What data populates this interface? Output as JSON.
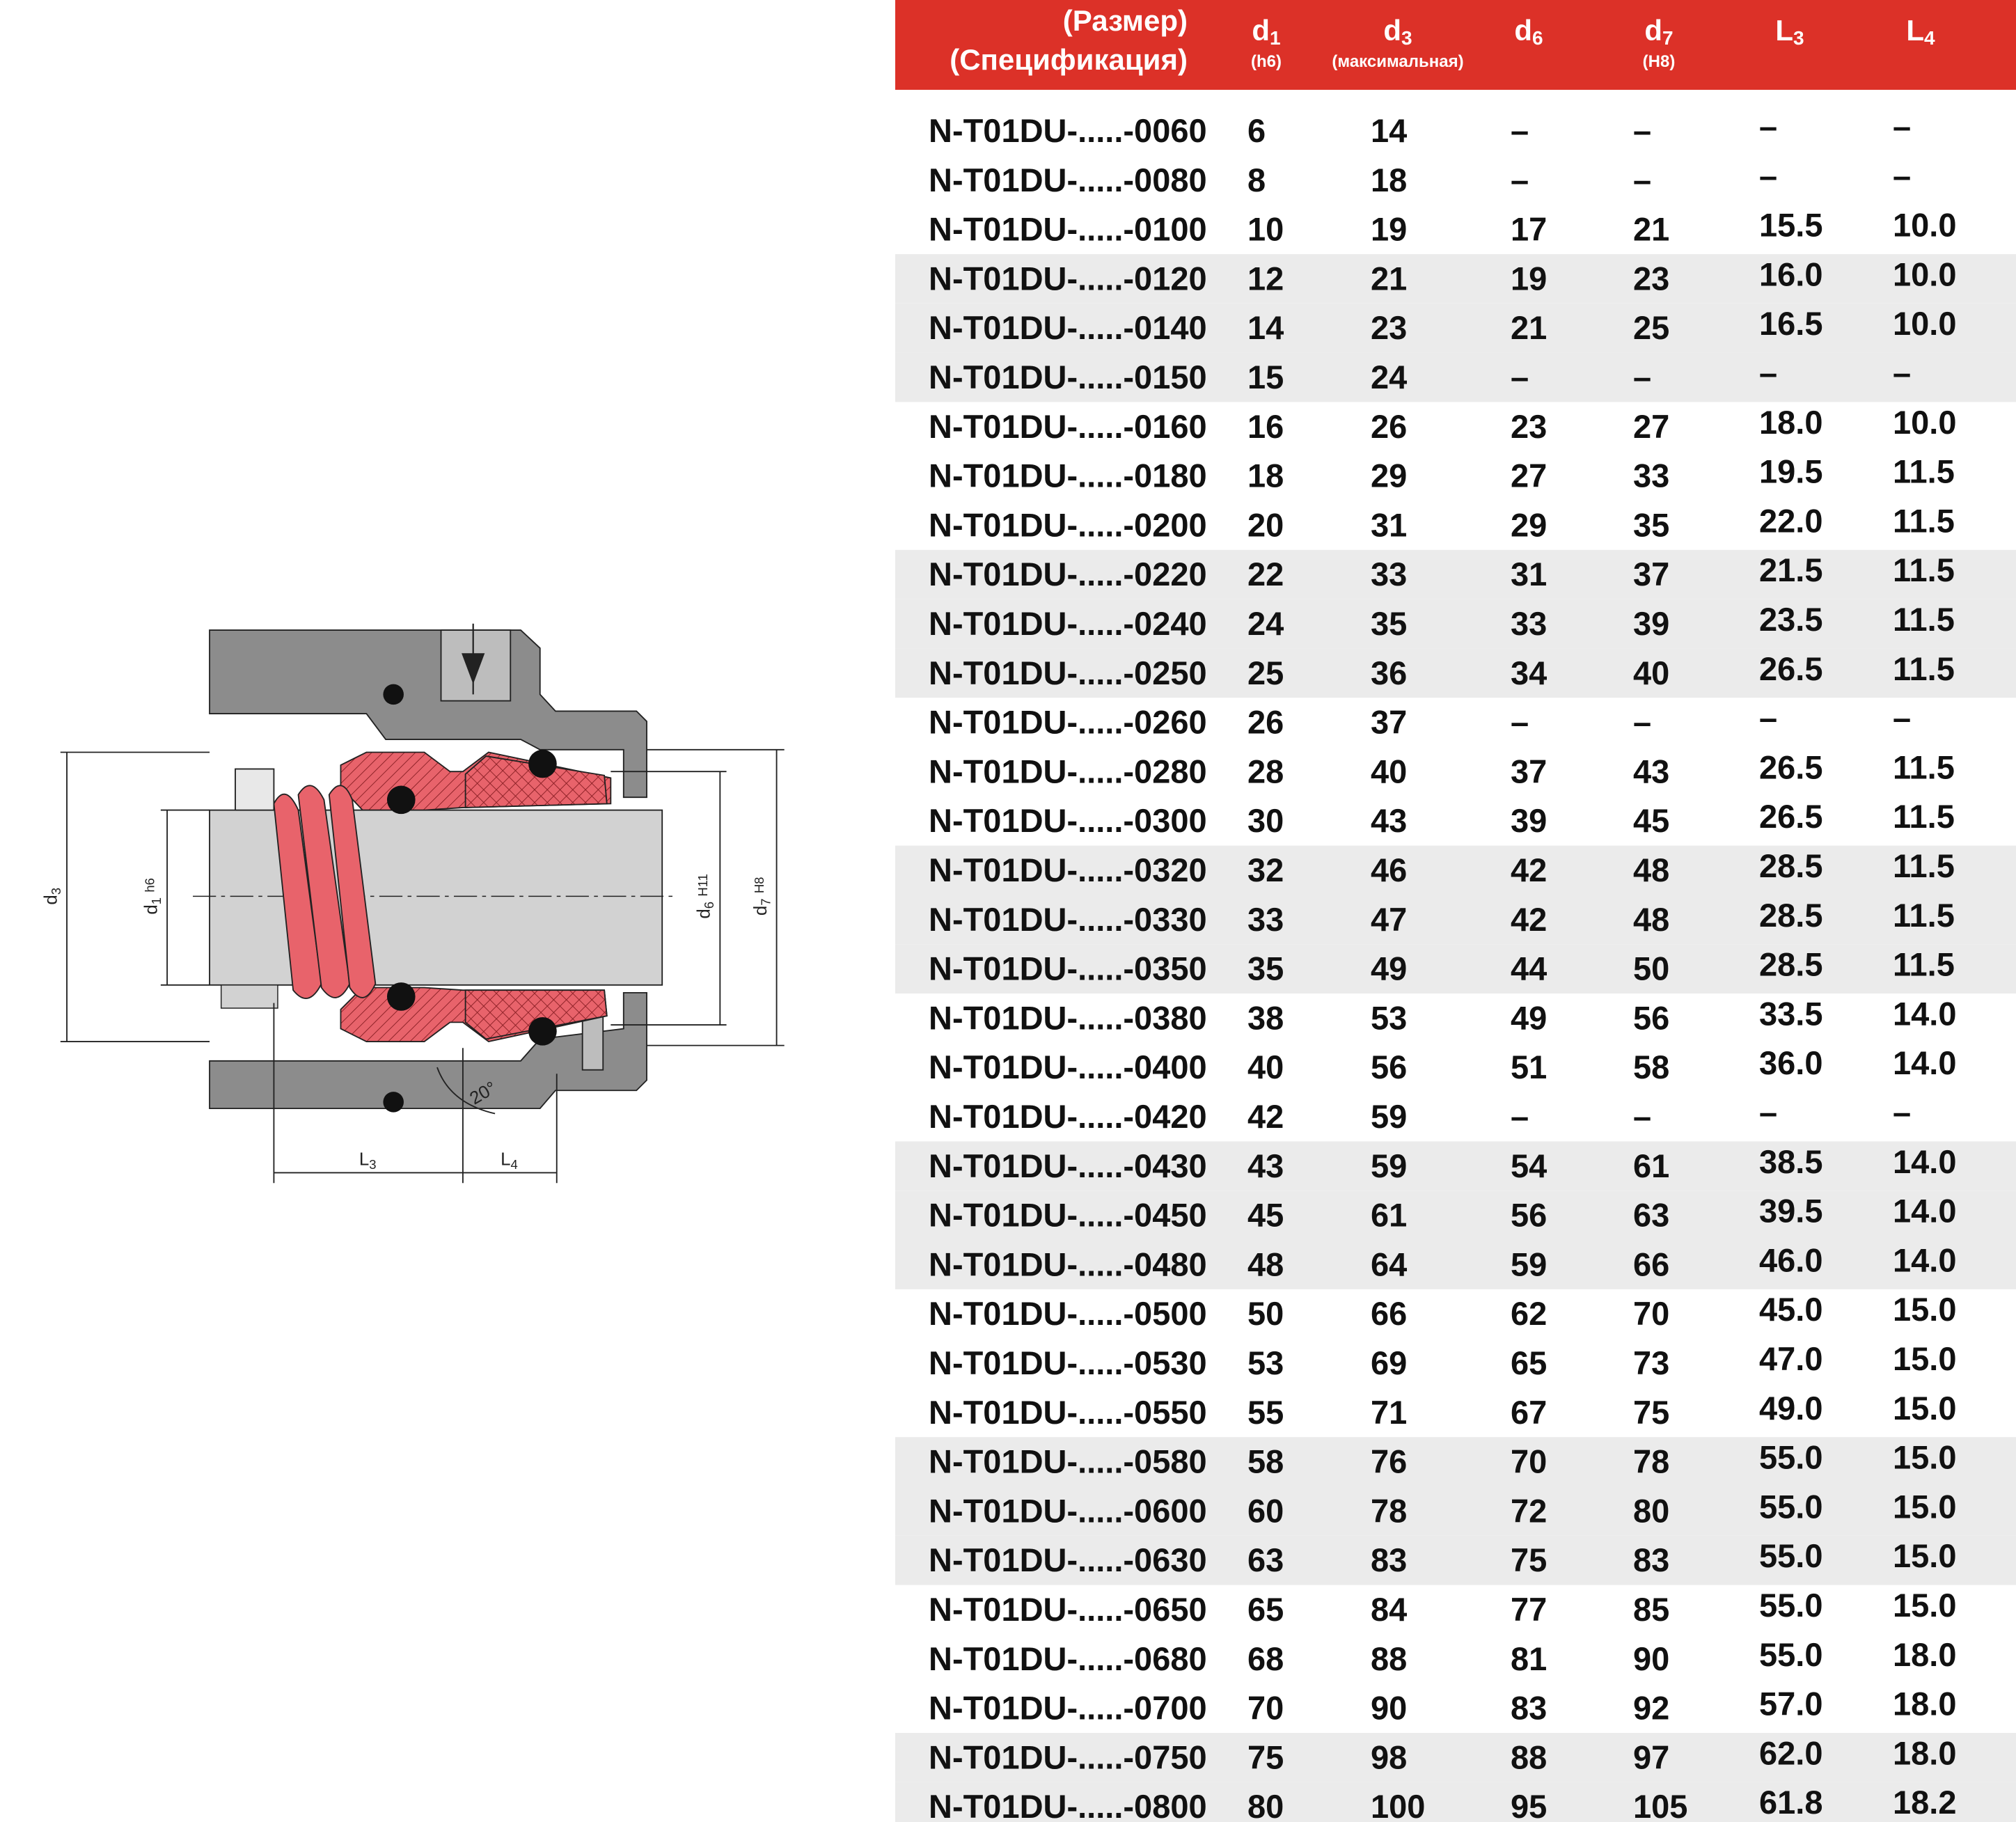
{
  "table": {
    "header": {
      "spec": [
        "(Размер)",
        "(Спецификация)"
      ],
      "columns": [
        {
          "symbol": "d",
          "sub": "1",
          "note": "(h6)"
        },
        {
          "symbol": "d",
          "sub": "3",
          "note": "(максимальная)"
        },
        {
          "symbol": "d",
          "sub": "6"
        },
        {
          "symbol": "d",
          "sub": "7",
          "note": "(H8)"
        },
        {
          "symbol": "L",
          "sub": "3"
        },
        {
          "symbol": "L",
          "sub": "4"
        }
      ]
    },
    "rows": [
      [
        "N-T01DU-.....-0060",
        "6",
        "14",
        "–",
        "–",
        "–",
        "–"
      ],
      [
        "N-T01DU-.....-0080",
        "8",
        "18",
        "–",
        "–",
        "–",
        "–"
      ],
      [
        "N-T01DU-.....-0100",
        "10",
        "19",
        "17",
        "21",
        "15.5",
        "10.0"
      ],
      [
        "N-T01DU-.....-0120",
        "12",
        "21",
        "19",
        "23",
        "16.0",
        "10.0"
      ],
      [
        "N-T01DU-.....-0140",
        "14",
        "23",
        "21",
        "25",
        "16.5",
        "10.0"
      ],
      [
        "N-T01DU-.....-0150",
        "15",
        "24",
        "–",
        "–",
        "–",
        "–"
      ],
      [
        "N-T01DU-.....-0160",
        "16",
        "26",
        "23",
        "27",
        "18.0",
        "10.0"
      ],
      [
        "N-T01DU-.....-0180",
        "18",
        "29",
        "27",
        "33",
        "19.5",
        "11.5"
      ],
      [
        "N-T01DU-.....-0200",
        "20",
        "31",
        "29",
        "35",
        "22.0",
        "11.5"
      ],
      [
        "N-T01DU-.....-0220",
        "22",
        "33",
        "31",
        "37",
        "21.5",
        "11.5"
      ],
      [
        "N-T01DU-.....-0240",
        "24",
        "35",
        "33",
        "39",
        "23.5",
        "11.5"
      ],
      [
        "N-T01DU-.....-0250",
        "25",
        "36",
        "34",
        "40",
        "26.5",
        "11.5"
      ],
      [
        "N-T01DU-.....-0260",
        "26",
        "37",
        "–",
        "–",
        "–",
        "–"
      ],
      [
        "N-T01DU-.....-0280",
        "28",
        "40",
        "37",
        "43",
        "26.5",
        "11.5"
      ],
      [
        "N-T01DU-.....-0300",
        "30",
        "43",
        "39",
        "45",
        "26.5",
        "11.5"
      ],
      [
        "N-T01DU-.....-0320",
        "32",
        "46",
        "42",
        "48",
        "28.5",
        "11.5"
      ],
      [
        "N-T01DU-.....-0330",
        "33",
        "47",
        "42",
        "48",
        "28.5",
        "11.5"
      ],
      [
        "N-T01DU-.....-0350",
        "35",
        "49",
        "44",
        "50",
        "28.5",
        "11.5"
      ],
      [
        "N-T01DU-.....-0380",
        "38",
        "53",
        "49",
        "56",
        "33.5",
        "14.0"
      ],
      [
        "N-T01DU-.....-0400",
        "40",
        "56",
        "51",
        "58",
        "36.0",
        "14.0"
      ],
      [
        "N-T01DU-.....-0420",
        "42",
        "59",
        "–",
        "–",
        "–",
        "–"
      ],
      [
        "N-T01DU-.....-0430",
        "43",
        "59",
        "54",
        "61",
        "38.5",
        "14.0"
      ],
      [
        "N-T01DU-.....-0450",
        "45",
        "61",
        "56",
        "63",
        "39.5",
        "14.0"
      ],
      [
        "N-T01DU-.....-0480",
        "48",
        "64",
        "59",
        "66",
        "46.0",
        "14.0"
      ],
      [
        "N-T01DU-.....-0500",
        "50",
        "66",
        "62",
        "70",
        "45.0",
        "15.0"
      ],
      [
        "N-T01DU-.....-0530",
        "53",
        "69",
        "65",
        "73",
        "47.0",
        "15.0"
      ],
      [
        "N-T01DU-.....-0550",
        "55",
        "71",
        "67",
        "75",
        "49.0",
        "15.0"
      ],
      [
        "N-T01DU-.....-0580",
        "58",
        "76",
        "70",
        "78",
        "55.0",
        "15.0"
      ],
      [
        "N-T01DU-.....-0600",
        "60",
        "78",
        "72",
        "80",
        "55.0",
        "15.0"
      ],
      [
        "N-T01DU-.....-0630",
        "63",
        "83",
        "75",
        "83",
        "55.0",
        "15.0"
      ],
      [
        "N-T01DU-.....-0650",
        "65",
        "84",
        "77",
        "85",
        "55.0",
        "15.0"
      ],
      [
        "N-T01DU-.....-0680",
        "68",
        "88",
        "81",
        "90",
        "55.0",
        "18.0"
      ],
      [
        "N-T01DU-.....-0700",
        "70",
        "90",
        "83",
        "92",
        "57.0",
        "18.0"
      ],
      [
        "N-T01DU-.....-0750",
        "75",
        "98",
        "88",
        "97",
        "62.0",
        "18.0"
      ],
      [
        "N-T01DU-.....-0800",
        "80",
        "100",
        "95",
        "105",
        "61.8",
        "18.2"
      ]
    ]
  },
  "drawing": {
    "labels": [
      {
        "symbol": "d",
        "sub": "3"
      },
      {
        "symbol": "d",
        "sub": "1",
        "tol": "h6"
      },
      {
        "symbol": "d",
        "sub": "6",
        "tol": "H11"
      },
      {
        "symbol": "d",
        "sub": "7",
        "tol": "H8"
      },
      {
        "symbol": "L",
        "sub": "3"
      },
      {
        "symbol": "L",
        "sub": "4"
      },
      {
        "text": "20°"
      }
    ]
  }
}
